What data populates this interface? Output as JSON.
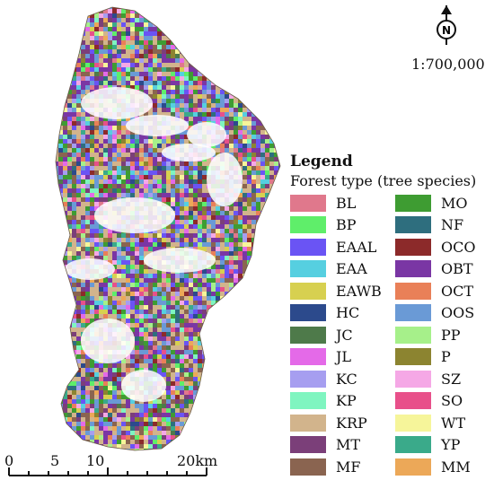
{
  "north_label": "N",
  "scale_ratio": "1:700,000",
  "legend": {
    "title": "Legend",
    "subtitle": "Forest type (tree species)",
    "left": [
      {
        "code": "BL",
        "color": "#e0788c"
      },
      {
        "code": "BP",
        "color": "#5fee6a"
      },
      {
        "code": "EAAL",
        "color": "#6a54f4"
      },
      {
        "code": "EAA",
        "color": "#56cfe0"
      },
      {
        "code": "EAWB",
        "color": "#d7d050"
      },
      {
        "code": "HC",
        "color": "#2c4a8c"
      },
      {
        "code": "JC",
        "color": "#4e7a4a"
      },
      {
        "code": "JL",
        "color": "#e46ae8"
      },
      {
        "code": "KC",
        "color": "#a69ef0"
      },
      {
        "code": "KP",
        "color": "#7ff5c0"
      },
      {
        "code": "KRP",
        "color": "#d2b48c"
      },
      {
        "code": "MT",
        "color": "#7b3f79"
      },
      {
        "code": "MF",
        "color": "#8a6450"
      }
    ],
    "right": [
      {
        "code": "MO",
        "color": "#3e9c32"
      },
      {
        "code": "NF",
        "color": "#2e6e7e"
      },
      {
        "code": "OCO",
        "color": "#8c2a2a"
      },
      {
        "code": "OBT",
        "color": "#7a36a4"
      },
      {
        "code": "OCT",
        "color": "#e98058"
      },
      {
        "code": "OOS",
        "color": "#6a9ad6"
      },
      {
        "code": "PP",
        "color": "#a6f08a"
      },
      {
        "code": "P",
        "color": "#8c8430"
      },
      {
        "code": "SZ",
        "color": "#f5a8e6"
      },
      {
        "code": "SO",
        "color": "#e8508a"
      },
      {
        "code": "WT",
        "color": "#f6f59a"
      },
      {
        "code": "YP",
        "color": "#3aaa8a"
      },
      {
        "code": "MM",
        "color": "#eca858"
      }
    ]
  },
  "scale_bar": {
    "ticks": [
      "0",
      "5",
      "10",
      "20km"
    ]
  }
}
